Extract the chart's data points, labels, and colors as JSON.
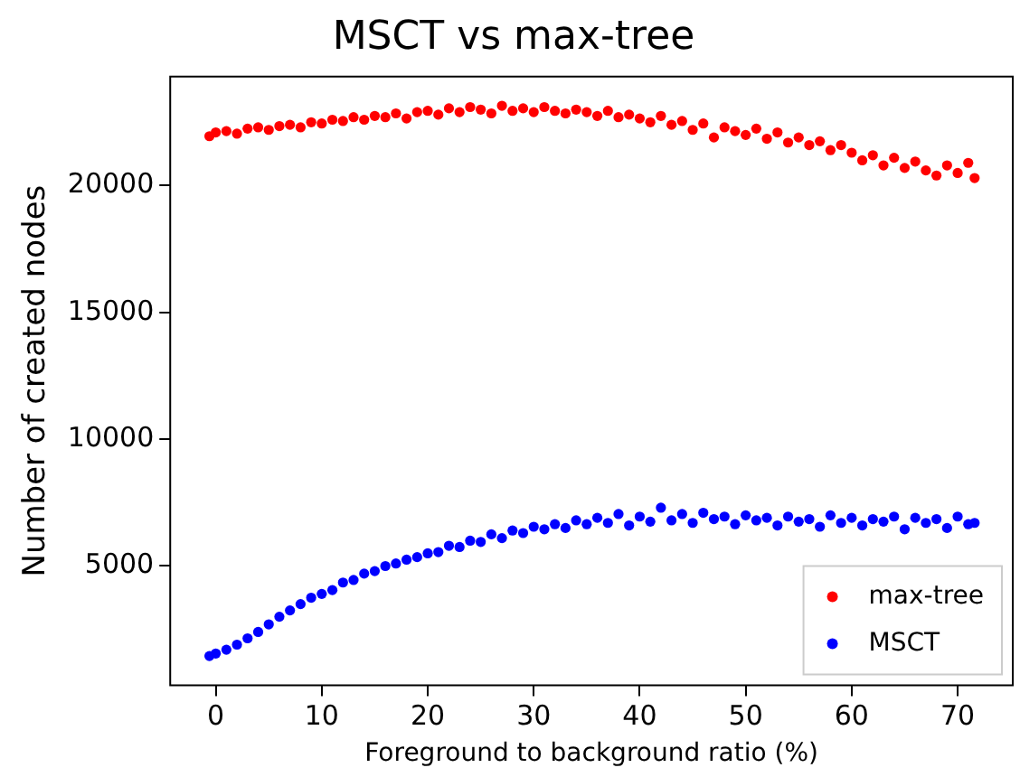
{
  "chart_data": {
    "type": "scatter",
    "title": "MSCT vs max-tree",
    "xlabel": "Foreground to background ratio (%)",
    "ylabel": "Number of created nodes",
    "xlim": [
      -4.3,
      75.2
    ],
    "ylim": [
      300,
      24300
    ],
    "xticks": [
      0,
      10,
      20,
      30,
      40,
      50,
      60,
      70
    ],
    "yticks": [
      5000,
      10000,
      15000,
      20000
    ],
    "grid": false,
    "legend": "bottom right",
    "marker": "circle",
    "series": [
      {
        "name": "max-tree",
        "color": "#ff0000",
        "x": [
          -0.6,
          0,
          1,
          2,
          3,
          4,
          5,
          6,
          7,
          8,
          9,
          10,
          11,
          12,
          13,
          14,
          15,
          16,
          17,
          18,
          19,
          20,
          21,
          22,
          23,
          24,
          25,
          26,
          27,
          28,
          29,
          30,
          31,
          32,
          33,
          34,
          35,
          36,
          37,
          38,
          39,
          40,
          41,
          42,
          43,
          44,
          45,
          46,
          47,
          48,
          49,
          50,
          51,
          52,
          53,
          54,
          55,
          56,
          57,
          58,
          59,
          60,
          61,
          62,
          63,
          64,
          65,
          66,
          67,
          68,
          69,
          70,
          71,
          71.6
        ],
        "values": [
          21950,
          22100,
          22150,
          22050,
          22250,
          22300,
          22200,
          22350,
          22400,
          22300,
          22500,
          22450,
          22600,
          22550,
          22700,
          22600,
          22750,
          22700,
          22850,
          22650,
          22900,
          22950,
          22800,
          23050,
          22900,
          23100,
          23000,
          22850,
          23150,
          22950,
          23050,
          22900,
          23100,
          22950,
          22850,
          23000,
          22900,
          22750,
          22950,
          22700,
          22800,
          22650,
          22500,
          22750,
          22400,
          22550,
          22200,
          22450,
          21900,
          22300,
          22150,
          22000,
          22250,
          21850,
          22100,
          21700,
          21900,
          21600,
          21750,
          21400,
          21600,
          21300,
          21000,
          21200,
          20800,
          21100,
          20700,
          20950,
          20600,
          20400,
          20800,
          20500,
          20900,
          20300
        ]
      },
      {
        "name": "MSCT",
        "color": "#0000ff",
        "x": [
          -0.6,
          0,
          1,
          2,
          3,
          4,
          5,
          6,
          7,
          8,
          9,
          10,
          11,
          12,
          13,
          14,
          15,
          16,
          17,
          18,
          19,
          20,
          21,
          22,
          23,
          24,
          25,
          26,
          27,
          28,
          29,
          30,
          31,
          32,
          33,
          34,
          35,
          36,
          37,
          38,
          39,
          40,
          41,
          42,
          43,
          44,
          45,
          46,
          47,
          48,
          49,
          50,
          51,
          52,
          53,
          54,
          55,
          56,
          57,
          58,
          59,
          60,
          61,
          62,
          63,
          64,
          65,
          66,
          67,
          68,
          69,
          70,
          71,
          71.6
        ],
        "values": [
          1450,
          1550,
          1700,
          1900,
          2150,
          2400,
          2700,
          3000,
          3250,
          3500,
          3750,
          3900,
          4050,
          4350,
          4450,
          4700,
          4800,
          5000,
          5100,
          5250,
          5350,
          5500,
          5550,
          5800,
          5750,
          6000,
          5950,
          6250,
          6100,
          6400,
          6300,
          6550,
          6450,
          6650,
          6500,
          6800,
          6650,
          6900,
          6700,
          7050,
          6600,
          6950,
          6750,
          7300,
          6800,
          7050,
          6700,
          7100,
          6850,
          6950,
          6650,
          7000,
          6800,
          6900,
          6600,
          6950,
          6750,
          6850,
          6550,
          7000,
          6700,
          6900,
          6600,
          6850,
          6750,
          6950,
          6450,
          6900,
          6700,
          6850,
          6500,
          6950,
          6650,
          6700
        ]
      }
    ]
  }
}
